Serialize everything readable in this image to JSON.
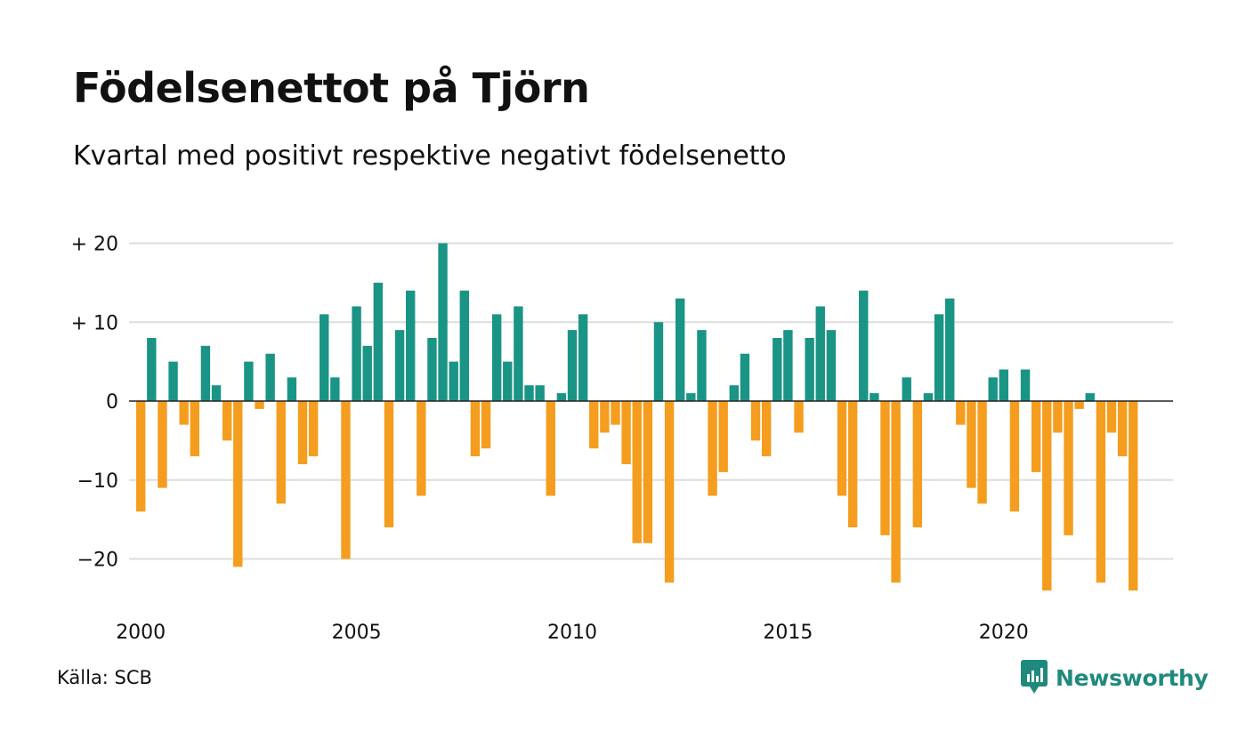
{
  "title": "Födelsenettot på Tjörn",
  "subtitle": "Kvartal med positivt respektive negativt födelsenetto",
  "source": "Källa: SCB",
  "brand": "Newsworthy",
  "colors": {
    "positive": "#1a9485",
    "negative": "#f59d1e",
    "grid": "#dddddd",
    "brand": "#1f8a7c"
  },
  "chart_data": {
    "type": "bar",
    "title": "Födelsenettot på Tjörn",
    "subtitle": "Kvartal med positivt respektive negativt födelsenetto",
    "x_start_year": 2000,
    "periods_per_year": 4,
    "x_ticks": [
      {
        "value": 2000,
        "label": "2000"
      },
      {
        "value": 2005,
        "label": "2005"
      },
      {
        "value": 2010,
        "label": "2010"
      },
      {
        "value": 2015,
        "label": "2015"
      },
      {
        "value": 2020,
        "label": "2020"
      }
    ],
    "y_ticks": [
      {
        "value": 20,
        "label": "+ 20"
      },
      {
        "value": 10,
        "label": "+ 10"
      },
      {
        "value": 0,
        "label": "0"
      },
      {
        "value": -10,
        "label": "−10"
      },
      {
        "value": -20,
        "label": "−20"
      }
    ],
    "ylim": [
      -25,
      21
    ],
    "grid": true,
    "values": [
      -14,
      8,
      -11,
      5,
      -3,
      -7,
      7,
      2,
      -5,
      -21,
      5,
      -1,
      6,
      -13,
      3,
      -8,
      -7,
      11,
      3,
      -20,
      12,
      7,
      15,
      -16,
      9,
      14,
      -12,
      8,
      20,
      5,
      14,
      -7,
      -6,
      11,
      5,
      12,
      2,
      2,
      -12,
      1,
      9,
      11,
      -6,
      -4,
      -3,
      -8,
      -18,
      -18,
      10,
      -23,
      13,
      1,
      9,
      -12,
      -9,
      2,
      6,
      -5,
      -7,
      8,
      9,
      -4,
      8,
      12,
      9,
      -12,
      -16,
      14,
      1,
      -17,
      -23,
      3,
      -16,
      1,
      11,
      13,
      -3,
      -11,
      -13,
      3,
      4,
      -14,
      4,
      -9,
      -24,
      -4,
      -17,
      -1,
      1,
      -23,
      -4,
      -7,
      -24
    ]
  }
}
